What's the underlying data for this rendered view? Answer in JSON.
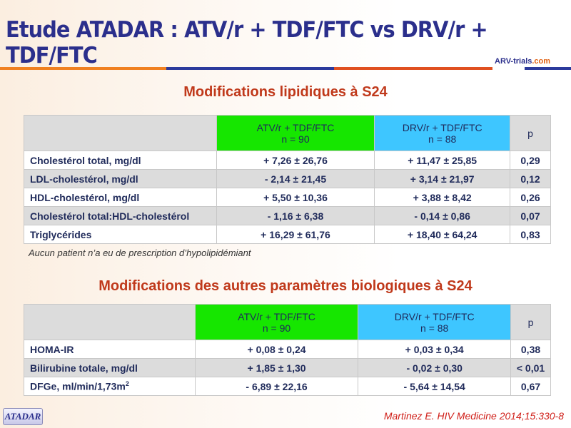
{
  "title": "Etude ATADAR : ATV/r + TDF/FTC vs DRV/r + TDF/FTC",
  "logo": {
    "brand": "ARV-trials",
    "suffix": ".com"
  },
  "section1": {
    "title": "Modifications lipidiques à S24",
    "headers": {
      "atv": "ATV/r + TDF/FTC",
      "atv_n": "n = 90",
      "drv": "DRV/r + TDF/FTC",
      "drv_n": "n = 88",
      "p": "p"
    },
    "rows": [
      {
        "label": "Cholestérol total, mg/dl",
        "atv": "+ 7,26 ± 26,76",
        "drv": "+ 11,47 ± 25,85",
        "p": "0,29"
      },
      {
        "label": "LDL-cholestérol, mg/dl",
        "atv": "- 2,14 ± 21,45",
        "drv": "+ 3,14 ± 21,97",
        "p": "0,12"
      },
      {
        "label": "HDL-cholestérol, mg/dl",
        "atv": "+ 5,50 ± 10,36",
        "drv": "+ 3,88 ± 8,42",
        "p": "0,26"
      },
      {
        "label": "Cholestérol total:HDL-cholestérol",
        "atv": "- 1,16 ± 6,38",
        "drv": "- 0,14 ± 0,86",
        "p": "0,07"
      },
      {
        "label": "Triglycérides",
        "atv": "+ 16,29 ± 61,76",
        "drv": "+ 18,40 ± 64,24",
        "p": "0,83"
      }
    ],
    "note": "Aucun patient n’a eu de prescription d’hypolipidémiant"
  },
  "section2": {
    "title": "Modifications des autres paramètres biologiques à S24",
    "headers": {
      "atv": "ATV/r + TDF/FTC",
      "atv_n": "n = 90",
      "drv": "DRV/r + TDF/FTC",
      "drv_n": "n = 88",
      "p": "p"
    },
    "rows": [
      {
        "label": "HOMA-IR",
        "atv": "+ 0,08 ± 0,24",
        "drv": "+ 0,03 ± 0,34",
        "p": "0,38"
      },
      {
        "label": "Bilirubine totale, mg/dl",
        "atv": "+ 1,85 ± 1,30",
        "drv": "- 0,02 ± 0,30",
        "p": "< 0,01"
      },
      {
        "label": "DFGe, ml/min/1,73m",
        "label_sup": "2",
        "atv": "- 6,89 ± 22,16",
        "drv": "- 5,64 ± 14,54",
        "p": "0,67"
      }
    ]
  },
  "footer": {
    "button": "ATADAR",
    "citation": "Martinez E. HIV Medicine 2014;15:330-8"
  },
  "colors": {
    "title": "#2b2f8c",
    "subtitle": "#c0391b",
    "atv_header": "#16e600",
    "drv_header": "#3ec6ff"
  }
}
